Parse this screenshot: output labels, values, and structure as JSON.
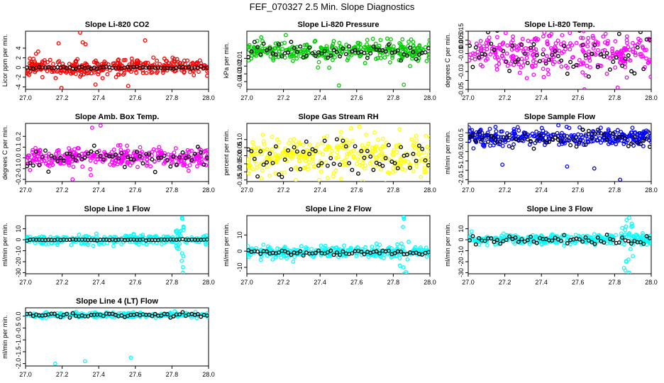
{
  "page_title": "FEF_070327  2.5 Min. Slope Diagnostics",
  "chart_data": [
    {
      "type": "scatter",
      "id": "co2",
      "title": "Slope Li-820 CO2",
      "ylabel": "Licor ppm per min.",
      "xlim": [
        27.0,
        28.0
      ],
      "ylim": [
        -4.5,
        7.5
      ],
      "yticks": [
        -4,
        -2,
        0,
        2,
        4
      ],
      "ytick_labels": [
        "-4",
        "-2",
        "0",
        "2",
        "4"
      ],
      "xticks": [
        27.0,
        27.2,
        27.4,
        27.6,
        27.8,
        28.0
      ],
      "xtick_labels": [
        "27.0",
        "27.2",
        "27.4",
        "27.6",
        "27.8",
        "28.0"
      ],
      "color": "#ff0000",
      "n": 320,
      "center": 0.1,
      "spread": 0.9,
      "outlier_values": [
        7.2,
        5.6,
        5.2,
        5.0,
        -3.8,
        -4.2,
        -3.5,
        4.8
      ],
      "black_center": 0.0,
      "black_spread": 0.12,
      "seed": 11
    },
    {
      "type": "scatter",
      "id": "pressure",
      "title": "Slope Li-820 Pressure",
      "ylabel": "kPa per min.",
      "xlim": [
        27.0,
        28.0
      ],
      "ylim": [
        -0.05,
        0.025
      ],
      "yticks": [
        -0.04,
        -0.03,
        -0.02,
        -0.01
      ],
      "ytick_labels": [
        "-0.04",
        "-0.03",
        "-0.02",
        "-0.01"
      ],
      "xticks": [
        27.0,
        27.2,
        27.4,
        27.6,
        27.8,
        28.0
      ],
      "xtick_labels": [
        "27.0",
        "27.2",
        "27.4",
        "27.6",
        "27.8",
        "28.0"
      ],
      "color": "#00cc00",
      "n": 320,
      "center": 0.0,
      "spread": 0.006,
      "outlier_values": [
        -0.045,
        -0.044,
        -0.022,
        -0.02,
        0.02
      ],
      "black_center": 0.0,
      "black_spread": 0.005,
      "seed": 23
    },
    {
      "type": "scatter",
      "id": "temp",
      "title": "Slope Li-820 Temp.",
      "ylabel": "degrees C per min.",
      "xlim": [
        27.0,
        28.0
      ],
      "ylim": [
        -0.05,
        0.015
      ],
      "yticks": [
        -0.05,
        -0.04,
        -0.03,
        -0.02,
        -0.01,
        0.0,
        0.005,
        0.015
      ],
      "ytick_labels": [
        "-0.05",
        "",
        "-0.03",
        "",
        "-0.01",
        "0.0",
        "0.005",
        "0.015"
      ],
      "xticks": [
        27.0,
        27.2,
        27.4,
        27.6,
        27.8,
        28.0
      ],
      "xtick_labels": [
        "27.0",
        "27.2",
        "27.4",
        "27.6",
        "27.8",
        "28.0"
      ],
      "color": "#ff00ff",
      "n": 300,
      "center": -0.01,
      "spread": 0.011,
      "outlier_values": [
        0.013,
        -0.048,
        -0.05,
        0.012
      ],
      "black_center": -0.01,
      "black_spread": 0.012,
      "seed": 37
    },
    {
      "type": "scatter",
      "id": "boxtemp",
      "title": "Slope Amb. Box Temp.",
      "ylabel": "degrees C per min.",
      "xlim": [
        27.0,
        28.0
      ],
      "ylim": [
        -0.22,
        0.32
      ],
      "yticks": [
        -0.2,
        -0.1,
        0.0,
        0.1,
        0.2
      ],
      "ytick_labels": [
        "-0.2",
        "-0.1",
        "0.0",
        "0.1",
        "0.2"
      ],
      "xticks": [
        27.0,
        27.2,
        27.4,
        27.6,
        27.8,
        28.0
      ],
      "xtick_labels": [
        "27.0",
        "27.2",
        "27.4",
        "27.6",
        "27.8",
        "28.0"
      ],
      "color": "#ff00ff",
      "n": 320,
      "center": 0.0,
      "spread": 0.045,
      "outlier_values": [
        0.3,
        0.28,
        -0.2,
        -0.16,
        -0.12
      ],
      "black_center": 0.0,
      "black_spread": 0.04,
      "seed": 41
    },
    {
      "type": "scatter",
      "id": "rh",
      "title": "Slope Gas Stream RH",
      "ylabel": "percent per min.",
      "xlim": [
        27.0,
        28.0
      ],
      "ylim": [
        -0.16,
        0.2
      ],
      "yticks": [
        -0.15,
        -0.1,
        -0.05,
        0.0,
        0.05,
        0.1
      ],
      "ytick_labels": [
        "-0.15",
        "-0.10",
        "-0.05",
        "0.00",
        "0.05",
        "0.10"
      ],
      "xticks": [
        27.0,
        27.2,
        27.4,
        27.6,
        27.8,
        28.0
      ],
      "xtick_labels": [
        "27.0",
        "27.2",
        "27.4",
        "27.6",
        "27.8",
        "28.0"
      ],
      "color": "#ffff00",
      "n": 320,
      "center": 0.0,
      "spread": 0.06,
      "outlier_values": [
        0.18,
        0.17,
        -0.15,
        -0.15
      ],
      "black_center": 0.0,
      "black_spread": 0.06,
      "seed": 53
    },
    {
      "type": "scatter",
      "id": "sampleflow",
      "title": "Slope Sample Flow",
      "ylabel": "ml/min per min.",
      "xlim": [
        27.0,
        28.0
      ],
      "ylim": [
        -2.1,
        1.0
      ],
      "yticks": [
        -2.0,
        -1.5,
        -1.0,
        -0.5,
        0.0,
        0.5
      ],
      "ytick_labels": [
        "-2.0",
        "-1.5",
        "-1.0",
        "-0.5",
        "0.0",
        "0.5"
      ],
      "xticks": [
        27.0,
        27.2,
        27.4,
        27.6,
        27.8,
        28.0
      ],
      "xtick_labels": [
        "27.0",
        "27.2",
        "27.4",
        "27.6",
        "27.8",
        "28.0"
      ],
      "color": "#0000ff",
      "n": 320,
      "center": 0.25,
      "spread": 0.2,
      "outlier_values": [
        -1.2,
        -1.3,
        -1.4,
        -2.0,
        0.8,
        0.9
      ],
      "black_center": 0.2,
      "black_spread": 0.2,
      "seed": 67
    },
    {
      "type": "scatter",
      "id": "line1",
      "title": "Slope Line 1 Flow",
      "ylabel": "ml/min per min.",
      "xlim": [
        27.0,
        28.0
      ],
      "ylim": [
        -31,
        22
      ],
      "yticks": [
        -30,
        -20,
        -10,
        0,
        10
      ],
      "ytick_labels": [
        "-30",
        "-20",
        "-10",
        "0",
        "10"
      ],
      "xticks": [
        27.0,
        27.2,
        27.4,
        27.6,
        27.8,
        28.0
      ],
      "xtick_labels": [
        "27.0",
        "27.2",
        "27.4",
        "27.6",
        "27.8",
        "28.0"
      ],
      "color": "#00ffff",
      "n": 300,
      "center": 0.0,
      "spread": 2.2,
      "outlier_values": [
        20,
        19,
        -25,
        -30,
        12,
        -15,
        9
      ],
      "spike_x": 27.85,
      "black_center": 0.0,
      "black_spread": 0.25,
      "seed": 71
    },
    {
      "type": "scatter",
      "id": "line2",
      "title": "Slope Line 2 Flow",
      "ylabel": "ml/min per min.",
      "xlim": [
        27.0,
        28.0
      ],
      "ylim": [
        -14,
        22
      ],
      "yticks": [
        -10,
        0,
        10
      ],
      "ytick_labels": [
        "-10",
        "0",
        "10"
      ],
      "xticks": [
        27.0,
        27.2,
        27.4,
        27.6,
        27.8,
        28.0
      ],
      "xtick_labels": [
        "27.0",
        "27.2",
        "27.4",
        "27.6",
        "27.8",
        "28.0"
      ],
      "color": "#00ffff",
      "n": 300,
      "center": -0.5,
      "spread": 1.8,
      "outlier_values": [
        21,
        20,
        -14,
        -13,
        15,
        -10
      ],
      "spike_x": 27.86,
      "black_center": -1.0,
      "black_spread": 0.9,
      "seed": 83
    },
    {
      "type": "scatter",
      "id": "line3",
      "title": "Slope Line 3 Flow",
      "ylabel": "ml/min per min.",
      "xlim": [
        27.0,
        28.0
      ],
      "ylim": [
        -31,
        22
      ],
      "yticks": [
        -30,
        -20,
        -10,
        0,
        10
      ],
      "ytick_labels": [
        "-30",
        "-20",
        "-10",
        "0",
        "10"
      ],
      "xticks": [
        27.0,
        27.2,
        27.4,
        27.6,
        27.8,
        28.0
      ],
      "xtick_labels": [
        "27.0",
        "27.2",
        "27.4",
        "27.6",
        "27.8",
        "28.0"
      ],
      "color": "#00ffff",
      "n": 300,
      "center": 0.0,
      "spread": 2.5,
      "outlier_values": [
        20,
        18,
        -28,
        -30,
        12,
        -20
      ],
      "spike_x": 27.87,
      "black_center": 0.0,
      "black_spread": 2.0,
      "seed": 97
    },
    {
      "type": "scatter",
      "id": "line4",
      "title": "Slope Line 4 (LT) Flow",
      "ylabel": "ml/min per min.",
      "xlim": [
        27.0,
        28.0
      ],
      "ylim": [
        -2.1,
        0.35
      ],
      "yticks": [
        -2.0,
        -1.5,
        -1.0,
        -0.5,
        0.0
      ],
      "ytick_labels": [
        "-2.0",
        "-1.5",
        "-1.0",
        "-0.5",
        "0.0"
      ],
      "xticks": [
        27.0,
        27.2,
        27.4,
        27.6,
        27.8,
        28.0
      ],
      "xtick_labels": [
        "27.0",
        "27.2",
        "27.4",
        "27.6",
        "27.8",
        "28.0"
      ],
      "color": "#00ffff",
      "n": 260,
      "center": 0.05,
      "spread": 0.05,
      "outlier_values": [
        -1.75,
        -2.0,
        -1.9,
        0.2
      ],
      "black_center": 0.05,
      "black_spread": 0.05,
      "seed": 101
    }
  ]
}
